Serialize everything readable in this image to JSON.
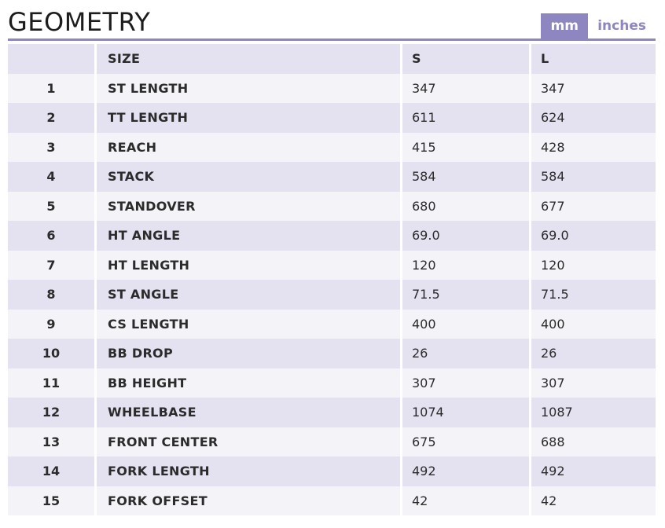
{
  "header": {
    "title": "GEOMETRY",
    "units": [
      {
        "label": "mm",
        "active": true
      },
      {
        "label": "inches",
        "active": false
      }
    ]
  },
  "table": {
    "columns": [
      "",
      "SIZE",
      "S",
      "L"
    ],
    "rows": [
      {
        "num": "1",
        "name": "ST LENGTH",
        "s": "347",
        "l": "347"
      },
      {
        "num": "2",
        "name": "TT LENGTH",
        "s": "611",
        "l": "624"
      },
      {
        "num": "3",
        "name": "REACH",
        "s": "415",
        "l": "428"
      },
      {
        "num": "4",
        "name": "STACK",
        "s": "584",
        "l": "584"
      },
      {
        "num": "5",
        "name": "STANDOVER",
        "s": "680",
        "l": "677"
      },
      {
        "num": "6",
        "name": "HT ANGLE",
        "s": "69.0",
        "l": "69.0"
      },
      {
        "num": "7",
        "name": "HT LENGTH",
        "s": "120",
        "l": "120"
      },
      {
        "num": "8",
        "name": "ST ANGLE",
        "s": "71.5",
        "l": "71.5"
      },
      {
        "num": "9",
        "name": "CS LENGTH",
        "s": "400",
        "l": "400"
      },
      {
        "num": "10",
        "name": "BB DROP",
        "s": "26",
        "l": "26"
      },
      {
        "num": "11",
        "name": "BB HEIGHT",
        "s": "307",
        "l": "307"
      },
      {
        "num": "12",
        "name": "WHEELBASE",
        "s": "1074",
        "l": "1087"
      },
      {
        "num": "13",
        "name": "FRONT CENTER",
        "s": "675",
        "l": "688"
      },
      {
        "num": "14",
        "name": "FORK LENGTH",
        "s": "492",
        "l": "492"
      },
      {
        "num": "15",
        "name": "FORK OFFSET",
        "s": "42",
        "l": "42"
      }
    ]
  },
  "colors": {
    "accent": "#8e86c0",
    "row_dark": "#e4e2f0",
    "row_light": "#f3f3f8"
  }
}
